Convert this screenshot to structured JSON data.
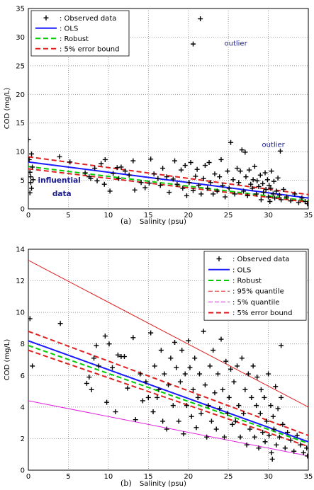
{
  "chart_data": [
    {
      "type": "scatter",
      "panel_label": "(a)",
      "xlabel": "Salinity (psu)",
      "ylabel": "COD (mg/L)",
      "xlim": [
        0,
        35
      ],
      "ylim": [
        0,
        35
      ],
      "xticks": [
        0,
        5,
        10,
        15,
        20,
        25,
        30,
        35
      ],
      "yticks": [
        0,
        5,
        10,
        15,
        20,
        25,
        30,
        35
      ],
      "grid": true,
      "legend_position": "top-left",
      "legend": [
        {
          "label": ": Observed data",
          "style": "marker",
          "color": "#000000"
        },
        {
          "label": ": OLS",
          "style": "solid",
          "color": "#1a1aff"
        },
        {
          "label": ": Robust",
          "style": "dashed",
          "color": "#00cc00"
        },
        {
          "label": ": 5% error bound",
          "style": "dashed",
          "color": "#e02020"
        }
      ],
      "lines": [
        {
          "label": "OLS",
          "color": "#1a1aff",
          "dash": "solid",
          "x": [
            0,
            35
          ],
          "y": [
            8.2,
            1.9
          ]
        },
        {
          "label": "Robust",
          "color": "#00cc00",
          "dash": "dashed",
          "x": [
            0,
            35
          ],
          "y": [
            7.4,
            1.4
          ]
        },
        {
          "label": "5% error bound upper",
          "color": "#e02020",
          "dash": "dashed",
          "x": [
            0,
            35
          ],
          "y": [
            9.1,
            2.5
          ]
        },
        {
          "label": "5% error bound lower",
          "color": "#e02020",
          "dash": "dashed",
          "x": [
            0,
            35
          ],
          "y": [
            7.0,
            1.2
          ]
        }
      ],
      "annotations": [
        {
          "text": "outlier",
          "x": 24.5,
          "y": 28.5,
          "color": "#1a1a8c",
          "bold": false
        },
        {
          "text": "outlier",
          "x": 29.2,
          "y": 10.8,
          "color": "#1a1a8c",
          "bold": false
        },
        {
          "text": "influential",
          "x": 1.2,
          "y": 4.6,
          "color": "#1a1a8c",
          "bold": true
        },
        {
          "text": "data",
          "x": 3.0,
          "y": 2.2,
          "color": "#1a1a8c",
          "bold": true
        }
      ],
      "points": [
        [
          0.0,
          12.1
        ],
        [
          0.1,
          8.6
        ],
        [
          0.2,
          6.4
        ],
        [
          0.3,
          5.6
        ],
        [
          0.3,
          4.6
        ],
        [
          0.4,
          3.6
        ],
        [
          0.5,
          7.3
        ],
        [
          0.4,
          9.6
        ],
        [
          0.2,
          2.8
        ],
        [
          0.6,
          5.1
        ],
        [
          3.9,
          9.1
        ],
        [
          5.2,
          8.2
        ],
        [
          7.1,
          6.3
        ],
        [
          7.6,
          5.6
        ],
        [
          7.8,
          5.3
        ],
        [
          8.3,
          7.1
        ],
        [
          8.6,
          4.9
        ],
        [
          9.1,
          7.9
        ],
        [
          9.5,
          4.3
        ],
        [
          9.6,
          8.6
        ],
        [
          10.2,
          3.1
        ],
        [
          10.6,
          6.2
        ],
        [
          11.1,
          7.2
        ],
        [
          11.3,
          5.3
        ],
        [
          11.6,
          7.3
        ],
        [
          12.1,
          6.6
        ],
        [
          12.6,
          5.9
        ],
        [
          13.1,
          8.4
        ],
        [
          13.3,
          3.3
        ],
        [
          14.1,
          4.6
        ],
        [
          14.6,
          3.7
        ],
        [
          15.1,
          4.5
        ],
        [
          15.3,
          8.7
        ],
        [
          15.7,
          6.1
        ],
        [
          16.2,
          5.3
        ],
        [
          16.5,
          4.1
        ],
        [
          16.8,
          7.1
        ],
        [
          17.3,
          5.6
        ],
        [
          17.6,
          2.9
        ],
        [
          18.1,
          5.2
        ],
        [
          18.3,
          8.4
        ],
        [
          18.6,
          4.3
        ],
        [
          19.1,
          6.8
        ],
        [
          19.3,
          3.6
        ],
        [
          19.6,
          7.6
        ],
        [
          19.8,
          2.3
        ],
        [
          20.1,
          4.6
        ],
        [
          20.3,
          8.1
        ],
        [
          20.6,
          3.2
        ],
        [
          20.9,
          5.7
        ],
        [
          21.1,
          6.9
        ],
        [
          21.3,
          4.1
        ],
        [
          21.6,
          2.6
        ],
        [
          21.9,
          5.3
        ],
        [
          22.1,
          7.6
        ],
        [
          22.4,
          3.6
        ],
        [
          22.6,
          8.1
        ],
        [
          22.8,
          4.6
        ],
        [
          23.1,
          2.6
        ],
        [
          23.3,
          6.1
        ],
        [
          23.6,
          3.1
        ],
        [
          23.9,
          5.6
        ],
        [
          24.1,
          8.6
        ],
        [
          24.3,
          4.1
        ],
        [
          24.6,
          2.1
        ],
        [
          24.9,
          6.6
        ],
        [
          25.1,
          3.6
        ],
        [
          25.3,
          11.6
        ],
        [
          25.6,
          5.1
        ],
        [
          25.8,
          2.6
        ],
        [
          26.1,
          7.1
        ],
        [
          26.3,
          4.6
        ],
        [
          26.5,
          6.6
        ],
        [
          26.7,
          10.3
        ],
        [
          26.9,
          3.1
        ],
        [
          27.1,
          9.9
        ],
        [
          27.2,
          5.6
        ],
        [
          27.4,
          2.3
        ],
        [
          27.6,
          6.8
        ],
        [
          27.8,
          4.3
        ],
        [
          28.0,
          3.6
        ],
        [
          28.1,
          5.1
        ],
        [
          28.3,
          7.4
        ],
        [
          28.5,
          2.6
        ],
        [
          28.6,
          4.9
        ],
        [
          28.8,
          3.9
        ],
        [
          29.0,
          5.9
        ],
        [
          29.1,
          1.6
        ],
        [
          29.3,
          4.4
        ],
        [
          29.4,
          2.9
        ],
        [
          29.6,
          6.3
        ],
        [
          29.7,
          3.4
        ],
        [
          29.9,
          5.1
        ],
        [
          30.0,
          2.1
        ],
        [
          30.1,
          4.1
        ],
        [
          30.2,
          1.3
        ],
        [
          30.3,
          3.6
        ],
        [
          30.4,
          6.6
        ],
        [
          30.6,
          2.6
        ],
        [
          30.7,
          4.8
        ],
        [
          30.8,
          1.9
        ],
        [
          31.0,
          3.1
        ],
        [
          31.2,
          5.4
        ],
        [
          31.4,
          2.4
        ],
        [
          31.6,
          1.6
        ],
        [
          31.9,
          3.4
        ],
        [
          32.3,
          2.1
        ],
        [
          32.8,
          1.4
        ],
        [
          33.3,
          2.6
        ],
        [
          33.8,
          1.1
        ],
        [
          34.2,
          1.9
        ],
        [
          34.6,
          1.3
        ],
        [
          34.9,
          0.9
        ],
        [
          31.5,
          10.1
        ],
        [
          20.6,
          28.8
        ],
        [
          21.5,
          33.2
        ]
      ]
    },
    {
      "type": "scatter",
      "panel_label": "(b)",
      "xlabel": "Salinity (psu)",
      "ylabel": "COD (mg/L)",
      "xlim": [
        0,
        35
      ],
      "ylim": [
        0,
        14
      ],
      "xticks": [
        0,
        5,
        10,
        15,
        20,
        25,
        30,
        35
      ],
      "yticks": [
        0,
        2,
        4,
        6,
        8,
        10,
        12,
        14
      ],
      "grid": true,
      "legend_position": "top-right",
      "legend": [
        {
          "label": ": Observed data",
          "style": "marker",
          "color": "#000000"
        },
        {
          "label": ": OLS",
          "style": "solid",
          "color": "#1a1aff"
        },
        {
          "label": ": Robust",
          "style": "dashed",
          "color": "#00cc00"
        },
        {
          "label": ": 95% quantile",
          "style": "thin-dashed",
          "color": "#e02020"
        },
        {
          "label": ": 5% quantile",
          "style": "thin-dashed",
          "color": "#e020e0"
        },
        {
          "label": ": 5% error bound",
          "style": "dashed",
          "color": "#e02020"
        }
      ],
      "lines": [
        {
          "label": "95% quantile",
          "color": "#e02020",
          "dash": "solid-thin",
          "x": [
            0,
            35
          ],
          "y": [
            13.3,
            4.0
          ]
        },
        {
          "label": "5% quantile",
          "color": "#e020e0",
          "dash": "solid-thin",
          "x": [
            0,
            35
          ],
          "y": [
            4.4,
            0.9
          ]
        },
        {
          "label": "5% error bound upper",
          "color": "#e02020",
          "dash": "dashed",
          "x": [
            0,
            35
          ],
          "y": [
            8.8,
            2.2
          ]
        },
        {
          "label": "5% error bound lower",
          "color": "#e02020",
          "dash": "dashed",
          "x": [
            0,
            35
          ],
          "y": [
            7.6,
            1.5
          ]
        },
        {
          "label": "Robust",
          "color": "#00cc00",
          "dash": "dashed",
          "x": [
            0,
            35
          ],
          "y": [
            7.9,
            1.7
          ]
        },
        {
          "label": "OLS",
          "color": "#1a1aff",
          "dash": "solid",
          "x": [
            0,
            35
          ],
          "y": [
            8.2,
            1.8
          ]
        }
      ],
      "points": [
        [
          0.2,
          9.6
        ],
        [
          0.5,
          6.6
        ],
        [
          4.0,
          9.3
        ],
        [
          7.3,
          5.5
        ],
        [
          7.6,
          5.9
        ],
        [
          7.9,
          5.1
        ],
        [
          8.2,
          7.1
        ],
        [
          8.5,
          7.9
        ],
        [
          8.8,
          6.6
        ],
        [
          9.6,
          8.5
        ],
        [
          9.8,
          4.3
        ],
        [
          10.1,
          8.0
        ],
        [
          10.5,
          6.5
        ],
        [
          10.9,
          3.7
        ],
        [
          11.2,
          7.3
        ],
        [
          11.6,
          7.2
        ],
        [
          12.0,
          7.2
        ],
        [
          12.4,
          5.2
        ],
        [
          13.1,
          8.4
        ],
        [
          13.4,
          3.2
        ],
        [
          14.0,
          6.1
        ],
        [
          14.3,
          4.4
        ],
        [
          14.7,
          5.6
        ],
        [
          15.0,
          4.6
        ],
        [
          15.3,
          8.7
        ],
        [
          15.6,
          3.7
        ],
        [
          15.8,
          6.6
        ],
        [
          16.1,
          4.6
        ],
        [
          16.3,
          5.1
        ],
        [
          16.6,
          7.6
        ],
        [
          16.8,
          3.1
        ],
        [
          17.0,
          6.1
        ],
        [
          17.3,
          2.6
        ],
        [
          17.5,
          5.4
        ],
        [
          17.8,
          7.1
        ],
        [
          18.1,
          4.1
        ],
        [
          18.3,
          8.1
        ],
        [
          18.5,
          6.5
        ],
        [
          18.8,
          3.1
        ],
        [
          19.0,
          5.6
        ],
        [
          19.2,
          7.6
        ],
        [
          19.4,
          2.3
        ],
        [
          19.6,
          6.1
        ],
        [
          19.8,
          4.1
        ],
        [
          20.0,
          8.2
        ],
        [
          20.2,
          6.5
        ],
        [
          20.4,
          3.4
        ],
        [
          20.6,
          5.1
        ],
        [
          20.8,
          7.1
        ],
        [
          21.0,
          2.7
        ],
        [
          21.2,
          4.6
        ],
        [
          21.4,
          6.1
        ],
        [
          21.6,
          3.6
        ],
        [
          21.9,
          8.8
        ],
        [
          22.1,
          5.4
        ],
        [
          22.3,
          2.1
        ],
        [
          22.5,
          4.1
        ],
        [
          22.7,
          6.6
        ],
        [
          22.9,
          3.1
        ],
        [
          23.1,
          7.6
        ],
        [
          23.3,
          4.9
        ],
        [
          23.5,
          2.6
        ],
        [
          23.7,
          6.1
        ],
        [
          23.9,
          3.9
        ],
        [
          24.1,
          8.3
        ],
        [
          24.3,
          5.1
        ],
        [
          24.5,
          2.1
        ],
        [
          24.7,
          6.9
        ],
        [
          24.9,
          3.6
        ],
        [
          25.1,
          4.6
        ],
        [
          25.3,
          6.4
        ],
        [
          25.5,
          2.9
        ],
        [
          25.7,
          5.6
        ],
        [
          25.9,
          3.1
        ],
        [
          26.1,
          6.6
        ],
        [
          26.3,
          4.1
        ],
        [
          26.5,
          2.1
        ],
        [
          26.7,
          7.1
        ],
        [
          26.9,
          3.6
        ],
        [
          27.1,
          5.1
        ],
        [
          27.3,
          1.6
        ],
        [
          27.5,
          6.1
        ],
        [
          27.7,
          2.6
        ],
        [
          27.9,
          4.6
        ],
        [
          28.1,
          6.6
        ],
        [
          28.3,
          2.1
        ],
        [
          28.5,
          4.1
        ],
        [
          28.6,
          5.9
        ],
        [
          28.8,
          1.4
        ],
        [
          29.0,
          3.6
        ],
        [
          29.1,
          5.1
        ],
        [
          29.3,
          2.4
        ],
        [
          29.5,
          4.6
        ],
        [
          29.6,
          1.8
        ],
        [
          29.8,
          3.1
        ],
        [
          30.0,
          6.1
        ],
        [
          30.1,
          2.2
        ],
        [
          30.3,
          4.1
        ],
        [
          30.4,
          1.1
        ],
        [
          30.6,
          3.4
        ],
        [
          30.7,
          2.6
        ],
        [
          30.9,
          5.3
        ],
        [
          31.0,
          1.6
        ],
        [
          31.2,
          3.9
        ],
        [
          31.4,
          2.1
        ],
        [
          31.6,
          4.6
        ],
        [
          31.8,
          2.9
        ],
        [
          32.1,
          1.4
        ],
        [
          32.4,
          2.4
        ],
        [
          32.8,
          1.9
        ],
        [
          33.2,
          1.2
        ],
        [
          33.6,
          2.2
        ],
        [
          34.0,
          1.6
        ],
        [
          34.4,
          1.1
        ],
        [
          34.8,
          1.4
        ],
        [
          34.9,
          0.9
        ],
        [
          30.5,
          0.7
        ],
        [
          31.6,
          7.9
        ]
      ]
    }
  ]
}
